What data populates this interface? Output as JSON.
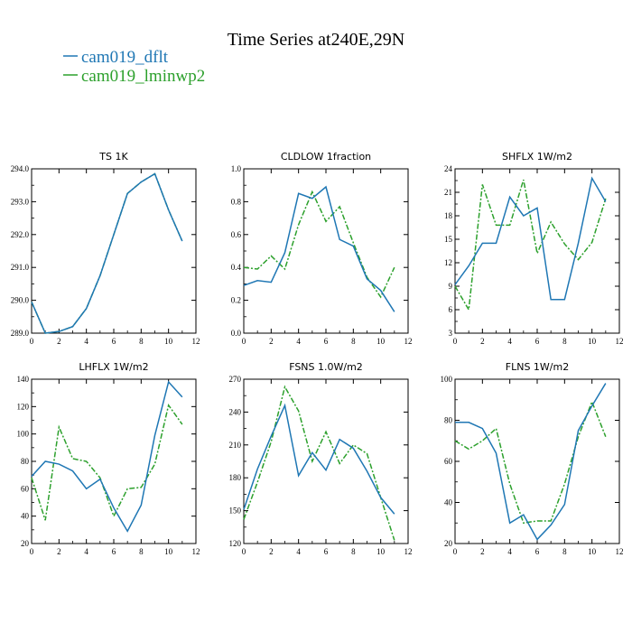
{
  "page": {
    "title": "Time Series at240E,29N"
  },
  "legend": [
    {
      "label": "cam019_dflt",
      "color": "#1f77b4",
      "style": "solid"
    },
    {
      "label": "cam019_lminwp2",
      "color": "#2ca02c",
      "style": "dashdot"
    }
  ],
  "chart_data": [
    {
      "type": "line",
      "title": "TS   1K",
      "x": [
        0,
        1,
        2,
        3,
        4,
        5,
        6,
        7,
        8,
        9,
        10,
        11
      ],
      "xlim": [
        0,
        12
      ],
      "xticks": [
        0,
        2,
        4,
        6,
        8,
        10,
        12
      ],
      "ylim": [
        289,
        294
      ],
      "yticks": [
        289,
        290,
        291,
        292,
        293,
        294
      ],
      "ytick_labels": [
        "289.0",
        "290.0",
        "291.0",
        "292.0",
        "293.0",
        "294.0"
      ],
      "series": [
        {
          "name": "cam019_dflt",
          "values": [
            289.95,
            289.0,
            289.05,
            289.2,
            289.75,
            290.75,
            292.0,
            293.25,
            293.6,
            293.85,
            292.75,
            291.8
          ]
        },
        {
          "name": "cam019_lminwp2",
          "values": [
            289.95,
            289.0,
            289.05,
            289.2,
            289.75,
            290.75,
            292.0,
            293.25,
            293.6,
            293.85,
            292.75,
            291.8
          ]
        }
      ]
    },
    {
      "type": "line",
      "title": "CLDLOW   1fraction",
      "x": [
        0,
        1,
        2,
        3,
        4,
        5,
        6,
        7,
        8,
        9,
        10,
        11
      ],
      "xlim": [
        0,
        12
      ],
      "xticks": [
        0,
        2,
        4,
        6,
        8,
        10,
        12
      ],
      "ylim": [
        0,
        1
      ],
      "yticks": [
        0,
        0.2,
        0.4,
        0.6,
        0.8,
        1.0
      ],
      "ytick_labels": [
        "0.0",
        "0.2",
        "0.4",
        "0.6",
        "0.8",
        "1.0"
      ],
      "series": [
        {
          "name": "cam019_dflt",
          "values": [
            0.29,
            0.32,
            0.31,
            0.49,
            0.85,
            0.82,
            0.89,
            0.57,
            0.53,
            0.33,
            0.26,
            0.13
          ]
        },
        {
          "name": "cam019_lminwp2",
          "values": [
            0.4,
            0.39,
            0.47,
            0.39,
            0.66,
            0.86,
            0.68,
            0.77,
            0.55,
            0.34,
            0.22,
            0.4
          ]
        }
      ]
    },
    {
      "type": "line",
      "title": "SHFLX   1W/m2",
      "x": [
        0,
        1,
        2,
        3,
        4,
        5,
        6,
        7,
        8,
        9,
        10,
        11
      ],
      "xlim": [
        0,
        12
      ],
      "xticks": [
        0,
        2,
        4,
        6,
        8,
        10,
        12
      ],
      "ylim": [
        3,
        24
      ],
      "yticks": [
        3,
        6,
        9,
        12,
        15,
        18,
        21,
        24
      ],
      "ytick_labels": [
        "3",
        "6",
        "9",
        "12",
        "15",
        "18",
        "21",
        "24"
      ],
      "series": [
        {
          "name": "cam019_dflt",
          "values": [
            9.2,
            11.6,
            14.5,
            14.5,
            20.4,
            18.0,
            19.0,
            7.3,
            7.3,
            14.5,
            22.8,
            19.8
          ]
        },
        {
          "name": "cam019_lminwp2",
          "values": [
            9.0,
            6.0,
            22.0,
            16.8,
            16.8,
            22.6,
            13.2,
            17.2,
            14.4,
            12.4,
            14.6,
            20.2
          ]
        }
      ]
    },
    {
      "type": "line",
      "title": "LHFLX   1W/m2",
      "x": [
        0,
        1,
        2,
        3,
        4,
        5,
        6,
        7,
        8,
        9,
        10,
        11
      ],
      "xlim": [
        0,
        12
      ],
      "xticks": [
        0,
        2,
        4,
        6,
        8,
        10,
        12
      ],
      "ylim": [
        20,
        140
      ],
      "yticks": [
        20,
        40,
        60,
        80,
        100,
        120,
        140
      ],
      "ytick_labels": [
        "20",
        "40",
        "60",
        "80",
        "100",
        "120",
        "140"
      ],
      "series": [
        {
          "name": "cam019_dflt",
          "values": [
            69,
            80,
            78,
            73,
            60,
            67,
            46,
            29,
            48,
            99,
            138,
            127
          ]
        },
        {
          "name": "cam019_lminwp2",
          "values": [
            68,
            37,
            105,
            82,
            80,
            68,
            40,
            60,
            61,
            78,
            121,
            107
          ]
        }
      ]
    },
    {
      "type": "line",
      "title": "FSNS   1.0W/m2",
      "x": [
        0,
        1,
        2,
        3,
        4,
        5,
        6,
        7,
        8,
        9,
        10,
        11
      ],
      "xlim": [
        0,
        12
      ],
      "xticks": [
        0,
        2,
        4,
        6,
        8,
        10,
        12
      ],
      "ylim": [
        120,
        270
      ],
      "yticks": [
        120,
        150,
        180,
        210,
        240,
        270
      ],
      "ytick_labels": [
        "120",
        "150",
        "180",
        "210",
        "240",
        "270"
      ],
      "series": [
        {
          "name": "cam019_dflt",
          "values": [
            151,
            188,
            218,
            246,
            182,
            203,
            187,
            215,
            207,
            186,
            162,
            147
          ]
        },
        {
          "name": "cam019_lminwp2",
          "values": [
            142,
            176,
            213,
            263,
            241,
            195,
            222,
            193,
            210,
            202,
            162,
            123
          ]
        }
      ]
    },
    {
      "type": "line",
      "title": "FLNS   1W/m2",
      "x": [
        0,
        1,
        2,
        3,
        4,
        5,
        6,
        7,
        8,
        9,
        10,
        11
      ],
      "xlim": [
        0,
        12
      ],
      "xticks": [
        0,
        2,
        4,
        6,
        8,
        10,
        12
      ],
      "ylim": [
        20,
        100
      ],
      "yticks": [
        20,
        40,
        60,
        80,
        100
      ],
      "ytick_labels": [
        "20",
        "40",
        "60",
        "80",
        "100"
      ],
      "series": [
        {
          "name": "cam019_dflt",
          "values": [
            79,
            79,
            76,
            64,
            30,
            34,
            22,
            29,
            39,
            75,
            87,
            98
          ]
        },
        {
          "name": "cam019_lminwp2",
          "values": [
            70,
            66,
            70,
            76,
            49,
            30,
            31,
            31,
            49,
            72,
            89,
            72
          ]
        }
      ]
    }
  ]
}
